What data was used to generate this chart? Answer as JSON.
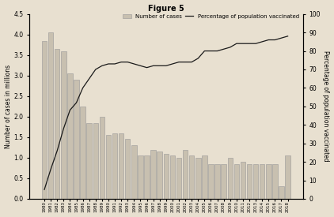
{
  "years": [
    1980,
    1981,
    1982,
    1983,
    1984,
    1985,
    1986,
    1987,
    1988,
    1989,
    1990,
    1991,
    1992,
    1993,
    1994,
    1995,
    1996,
    1997,
    1998,
    1999,
    2000,
    2001,
    2002,
    2003,
    2004,
    2005,
    2006,
    2007,
    2008,
    2009,
    2010,
    2011,
    2012,
    2013,
    2014,
    2015,
    2016,
    2017,
    2018
  ],
  "cases_millions": [
    3.85,
    4.05,
    3.65,
    3.6,
    3.05,
    2.9,
    2.25,
    1.85,
    1.85,
    2.0,
    1.55,
    1.6,
    1.6,
    1.45,
    1.3,
    1.05,
    1.05,
    1.2,
    1.15,
    1.1,
    1.05,
    1.0,
    1.2,
    1.05,
    1.0,
    1.05,
    0.85,
    0.85,
    0.85,
    1.0,
    0.85,
    0.9,
    0.85,
    0.85,
    0.85,
    0.85,
    0.85,
    0.3,
    1.05
  ],
  "vacc_pct": [
    5,
    16,
    26,
    38,
    48,
    52,
    60,
    65,
    70,
    72,
    73,
    73,
    74,
    74,
    73,
    72,
    71,
    72,
    72,
    72,
    73,
    74,
    74,
    74,
    76,
    80,
    80,
    80,
    81,
    82,
    84,
    84,
    84,
    84,
    85,
    86,
    86,
    87,
    88
  ],
  "bar_color": "#c8c0b0",
  "bar_edge_color": "#999999",
  "line_color": "#1a1a1a",
  "title": "Figure 5",
  "ylabel_left": "Number of cases in millions",
  "ylabel_right": "Percentage of population vaccinated",
  "ylim_left": [
    0.0,
    4.5
  ],
  "ylim_right": [
    0,
    100
  ],
  "yticks_left": [
    0.0,
    0.5,
    1.0,
    1.5,
    2.0,
    2.5,
    3.0,
    3.5,
    4.0,
    4.5
  ],
  "yticks_right": [
    0,
    10,
    20,
    30,
    40,
    50,
    60,
    70,
    80,
    90,
    100
  ],
  "legend_bar_label": "Number of cases",
  "legend_line_label": "Percentage of population vaccinated",
  "bg_color": "#e8e0d0"
}
